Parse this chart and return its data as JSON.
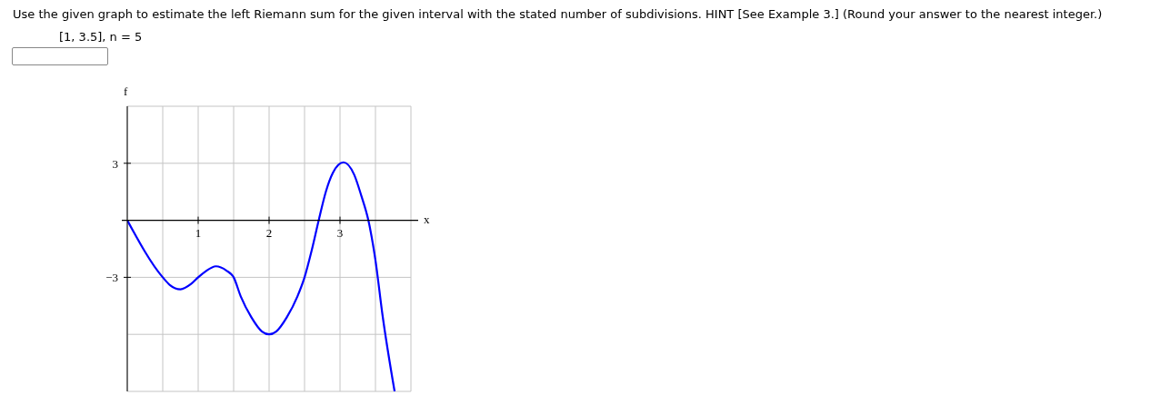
{
  "chart_data": {
    "type": "line",
    "title": "Use the given graph to estimate the left Riemann sum for the given interval with the stated number of subdivisions. HINT [See Example 3.] (Round your answer to the nearest integer.)",
    "subtitle": "[1, 3.5], n = 5",
    "xlabel": "x",
    "ylabel": "f",
    "x": [
      0,
      0.5,
      0.6,
      0.75,
      0.9,
      1,
      1.1,
      1.25,
      1.4,
      1.5,
      1.6,
      1.75,
      1.9,
      2,
      2.1,
      2.25,
      2.4,
      2.5,
      2.6,
      2.7,
      2.8,
      2.9,
      3.05,
      3.2,
      3.3,
      3.4,
      3.5,
      3.6,
      3.77
    ],
    "series": [
      {
        "color": "#0000ff",
        "values": [
          0,
          -3,
          -3.4,
          -3.63,
          -3.35,
          -3,
          -2.7,
          -2.42,
          -2.65,
          -3,
          -4,
          -5.1,
          -5.85,
          -6,
          -5.85,
          -5.1,
          -4,
          -3,
          -1.6,
          0,
          1.5,
          2.5,
          3.05,
          2.4,
          1.3,
          0,
          -2.1,
          -5,
          -9
        ]
      }
    ],
    "xlim": [
      0,
      4
    ],
    "ylim": [
      -9,
      6
    ],
    "xticks": [
      {
        "value": 0,
        "label": null
      },
      {
        "value": 0.5,
        "label": null
      },
      1,
      {
        "value": 1.5,
        "label": null
      },
      2,
      {
        "value": 2.5,
        "label": null
      },
      3,
      {
        "value": 3.5,
        "label": null
      },
      {
        "value": 4,
        "label": null
      }
    ],
    "yticks": [
      {
        "value": -9,
        "label": null
      },
      {
        "value": -6,
        "label": null
      },
      {
        "value": -3,
        "label": "−3"
      },
      {
        "value": 0,
        "label": null
      },
      3,
      {
        "value": 6,
        "label": null
      }
    ],
    "grid": true,
    "marker": "none",
    "line_style": "solid"
  }
}
